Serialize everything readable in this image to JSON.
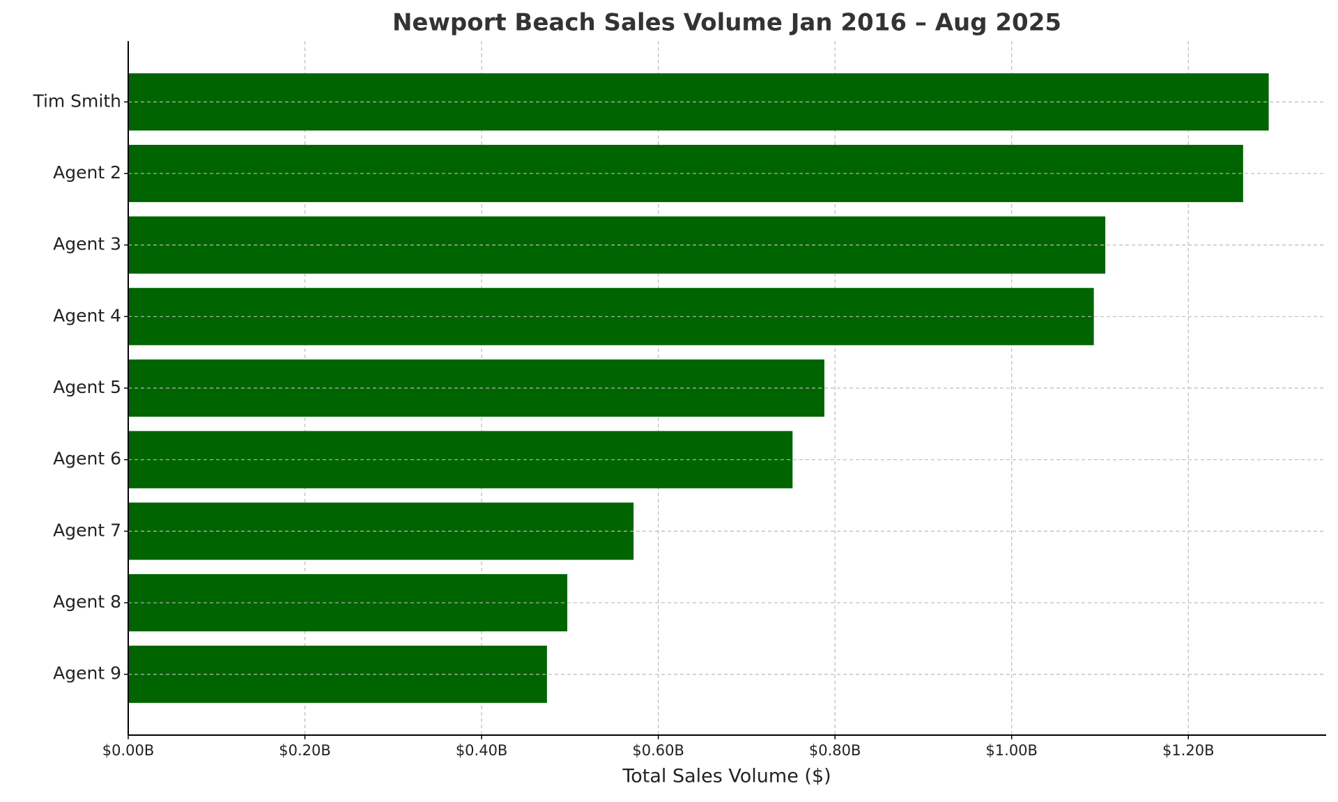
{
  "chart_data": {
    "type": "bar",
    "orientation": "horizontal",
    "title": "Newport Beach Sales Volume Jan 2016 – Aug 2025",
    "x_label": "Total Sales Volume ($)",
    "categories": [
      "Tim Smith",
      "Agent 2",
      "Agent 3",
      "Agent 4",
      "Agent 5",
      "Agent 6",
      "Agent 7",
      "Agent 8",
      "Agent 9"
    ],
    "values": [
      1291000000,
      1262000000,
      1106000000,
      1093000000,
      788000000,
      752000000,
      572000000,
      497000000,
      474000000
    ],
    "color": "#006400",
    "xlim": [
      0,
      1356000000
    ],
    "xticks": [
      {
        "value": 0,
        "label": "$0.00B"
      },
      {
        "value": 200000000,
        "label": "$0.20B"
      },
      {
        "value": 400000000,
        "label": "$0.40B"
      },
      {
        "value": 600000000,
        "label": "$0.60B"
      },
      {
        "value": 800000000,
        "label": "$0.80B"
      },
      {
        "value": 1000000000,
        "label": "$1.00B"
      },
      {
        "value": 1200000000,
        "label": "$1.20B"
      }
    ],
    "grid": true
  }
}
